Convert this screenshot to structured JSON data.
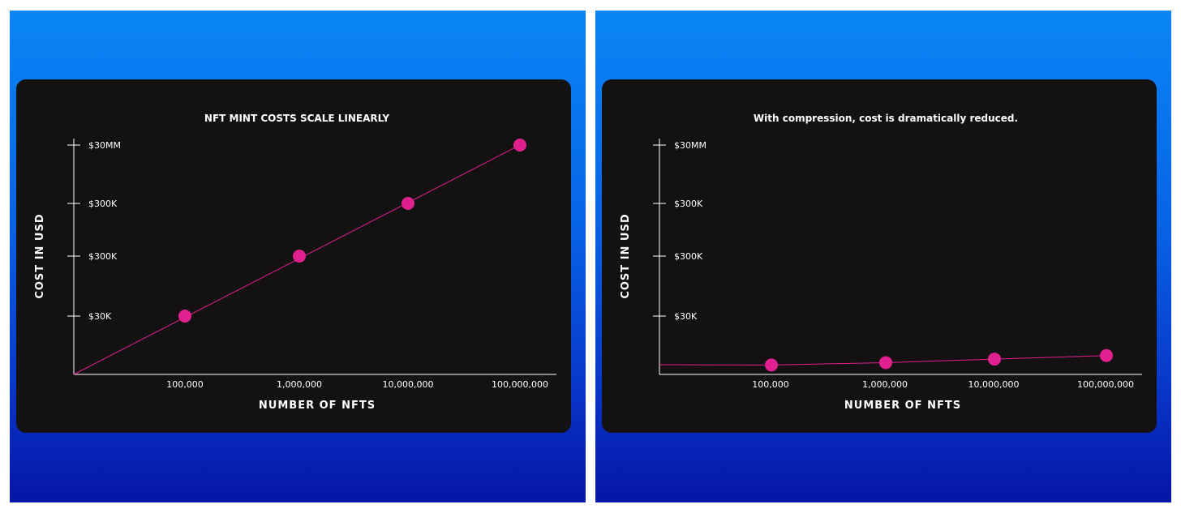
{
  "chart_data": [
    {
      "type": "line",
      "title": "NFT MINT COSTS SCALE LINEARLY",
      "xlabel": "NUMBER OF NFTS",
      "ylabel": "COST IN USD",
      "x_scale": "log",
      "y_tick_labels": [
        "$30K",
        "$300K",
        "$300K",
        "$30MM"
      ],
      "x_tick_labels": [
        "100,000",
        "1,000,000",
        "10,000,000",
        "100,000,000"
      ],
      "series": [
        {
          "x": [
            "100,000",
            "1,000,000",
            "10,000,000",
            "100,000,000"
          ],
          "y": [
            "$30K",
            "$300K",
            "$300K",
            "$30MM"
          ]
        }
      ],
      "colors": {
        "point": "#e0208f",
        "line": "#e0208f",
        "axis": "#ffffff",
        "background": "#141112"
      }
    },
    {
      "type": "line",
      "title": "With compression, cost is dramatically reduced.",
      "xlabel": "NUMBER OF NFTS",
      "ylabel": "COST IN USD",
      "x_scale": "log",
      "y_tick_labels": [
        "$30K",
        "$300K",
        "$300K",
        "$30MM"
      ],
      "x_tick_labels": [
        "100,000",
        "1,000,000",
        "10,000,000",
        "100,000,000"
      ],
      "series": [
        {
          "x": [
            "100,000",
            "1,000,000",
            "10,000,000",
            "100,000,000"
          ],
          "y_fraction_of_axis": [
            0.04,
            0.05,
            0.065,
            0.08
          ]
        }
      ],
      "colors": {
        "point": "#e0208f",
        "line": "#e0208f",
        "axis": "#ffffff",
        "background": "#141112"
      }
    }
  ]
}
